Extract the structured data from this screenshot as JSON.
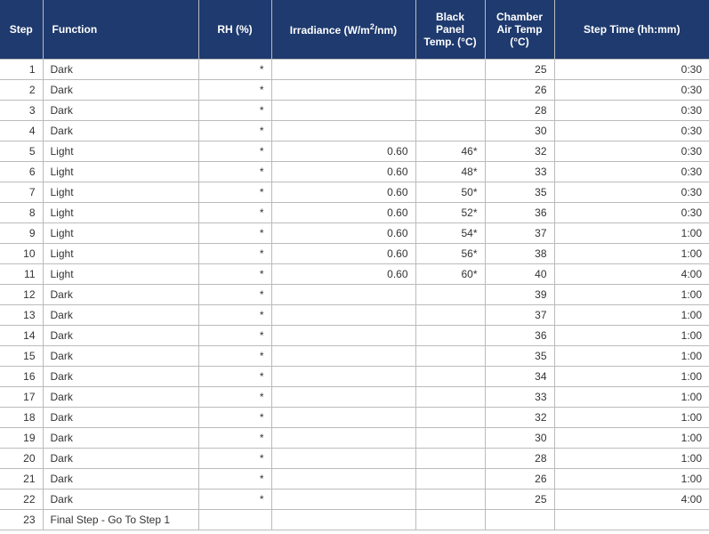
{
  "table": {
    "header_bg": "#1e3a6e",
    "header_fg": "#ffffff",
    "border_color": "#bbbbbb",
    "columns": [
      {
        "key": "step",
        "label": "Step",
        "class": "col-step"
      },
      {
        "key": "func",
        "label": "Function",
        "class": "col-func"
      },
      {
        "key": "rh",
        "label": "RH (%)",
        "class": "col-rh"
      },
      {
        "key": "irr",
        "label_html": "Irradiance (W/m<sup>2</sup>/nm)",
        "class": "col-irr"
      },
      {
        "key": "bpt",
        "label": "Black Panel Temp. (°C)",
        "class": "col-bpt"
      },
      {
        "key": "cat",
        "label": "Chamber Air Temp (°C)",
        "class": "col-cat"
      },
      {
        "key": "time",
        "label": "Step Time (hh:mm)",
        "class": "col-time"
      }
    ],
    "rows": [
      {
        "step": "1",
        "func": "Dark",
        "rh": "*",
        "irr": "",
        "bpt": "",
        "cat": "25",
        "time": "0:30"
      },
      {
        "step": "2",
        "func": "Dark",
        "rh": "*",
        "irr": "",
        "bpt": "",
        "cat": "26",
        "time": "0:30"
      },
      {
        "step": "3",
        "func": "Dark",
        "rh": "*",
        "irr": "",
        "bpt": "",
        "cat": "28",
        "time": "0:30"
      },
      {
        "step": "4",
        "func": "Dark",
        "rh": "*",
        "irr": "",
        "bpt": "",
        "cat": "30",
        "time": "0:30"
      },
      {
        "step": "5",
        "func": "Light",
        "rh": "*",
        "irr": "0.60",
        "bpt": "46*",
        "cat": "32",
        "time": "0:30"
      },
      {
        "step": "6",
        "func": "Light",
        "rh": "*",
        "irr": "0.60",
        "bpt": "48*",
        "cat": "33",
        "time": "0:30"
      },
      {
        "step": "7",
        "func": "Light",
        "rh": "*",
        "irr": "0.60",
        "bpt": "50*",
        "cat": "35",
        "time": "0:30"
      },
      {
        "step": "8",
        "func": "Light",
        "rh": "*",
        "irr": "0.60",
        "bpt": "52*",
        "cat": "36",
        "time": "0:30"
      },
      {
        "step": "9",
        "func": "Light",
        "rh": "*",
        "irr": "0.60",
        "bpt": "54*",
        "cat": "37",
        "time": "1:00"
      },
      {
        "step": "10",
        "func": "Light",
        "rh": "*",
        "irr": "0.60",
        "bpt": "56*",
        "cat": "38",
        "time": "1:00"
      },
      {
        "step": "11",
        "func": "Light",
        "rh": "*",
        "irr": "0.60",
        "bpt": "60*",
        "cat": "40",
        "time": "4:00"
      },
      {
        "step": "12",
        "func": "Dark",
        "rh": "*",
        "irr": "",
        "bpt": "",
        "cat": "39",
        "time": "1:00"
      },
      {
        "step": "13",
        "func": "Dark",
        "rh": "*",
        "irr": "",
        "bpt": "",
        "cat": "37",
        "time": "1:00"
      },
      {
        "step": "14",
        "func": "Dark",
        "rh": "*",
        "irr": "",
        "bpt": "",
        "cat": "36",
        "time": "1:00"
      },
      {
        "step": "15",
        "func": "Dark",
        "rh": "*",
        "irr": "",
        "bpt": "",
        "cat": "35",
        "time": "1:00"
      },
      {
        "step": "16",
        "func": "Dark",
        "rh": "*",
        "irr": "",
        "bpt": "",
        "cat": "34",
        "time": "1:00"
      },
      {
        "step": "17",
        "func": "Dark",
        "rh": "*",
        "irr": "",
        "bpt": "",
        "cat": "33",
        "time": "1:00"
      },
      {
        "step": "18",
        "func": "Dark",
        "rh": "*",
        "irr": "",
        "bpt": "",
        "cat": "32",
        "time": "1:00"
      },
      {
        "step": "19",
        "func": "Dark",
        "rh": "*",
        "irr": "",
        "bpt": "",
        "cat": "30",
        "time": "1:00"
      },
      {
        "step": "20",
        "func": "Dark",
        "rh": "*",
        "irr": "",
        "bpt": "",
        "cat": "28",
        "time": "1:00"
      },
      {
        "step": "21",
        "func": "Dark",
        "rh": "*",
        "irr": "",
        "bpt": "",
        "cat": "26",
        "time": "1:00"
      },
      {
        "step": "22",
        "func": "Dark",
        "rh": "*",
        "irr": "",
        "bpt": "",
        "cat": "25",
        "time": "4:00"
      },
      {
        "step": "23",
        "func": "Final Step - Go To Step 1",
        "rh": "",
        "irr": "",
        "bpt": "",
        "cat": "",
        "time": ""
      }
    ]
  }
}
